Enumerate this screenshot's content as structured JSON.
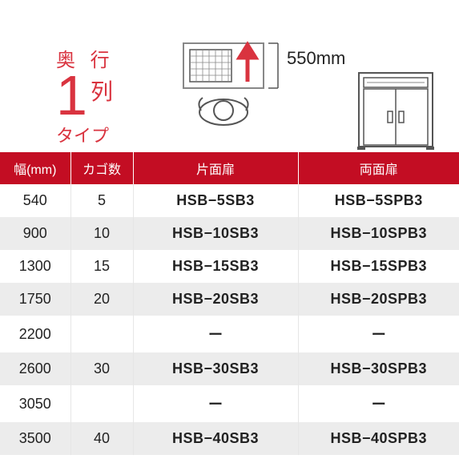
{
  "header": {
    "depth_l1": "奥 行",
    "big_number": "1",
    "retu": "列",
    "type": "タイプ",
    "dimension": "550mm"
  },
  "table": {
    "columns": [
      "幅(mm)",
      "カゴ数",
      "片面扉",
      "両面扉"
    ],
    "rows": [
      {
        "width": "540",
        "count": "5",
        "single": "HSB−5SB3",
        "double": "HSB−5SPB3",
        "alt": false
      },
      {
        "width": "900",
        "count": "10",
        "single": "HSB−10SB3",
        "double": "HSB−10SPB3",
        "alt": true
      },
      {
        "width": "1300",
        "count": "15",
        "single": "HSB−15SB3",
        "double": "HSB−15SPB3",
        "alt": false
      },
      {
        "width": "1750",
        "count": "20",
        "single": "HSB−20SB3",
        "double": "HSB−20SPB3",
        "alt": true
      },
      {
        "width": "2200",
        "count": "",
        "single": "ー",
        "double": "ー",
        "alt": false
      },
      {
        "width": "2600",
        "count": "30",
        "single": "HSB−30SB3",
        "double": "HSB−30SPB3",
        "alt": true
      },
      {
        "width": "3050",
        "count": "",
        "single": "ー",
        "double": "ー",
        "alt": false
      },
      {
        "width": "3500",
        "count": "40",
        "single": "HSB−40SB3",
        "double": "HSB−40SPB3",
        "alt": true
      }
    ]
  },
  "colors": {
    "brand_red": "#c30d23",
    "accent_red": "#d9333f",
    "alt_row": "#ececec",
    "border": "#e6e6e6",
    "text": "#222222"
  }
}
